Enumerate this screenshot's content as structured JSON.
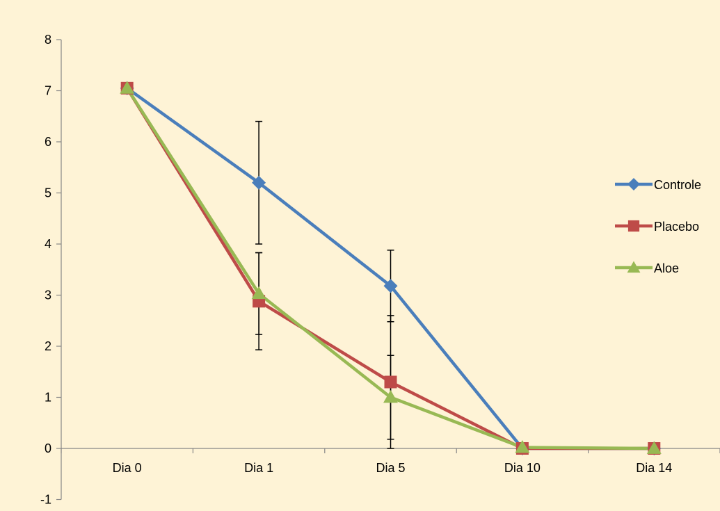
{
  "chart_data": {
    "type": "line",
    "title": "",
    "xlabel": "",
    "ylabel": "",
    "categories": [
      "Dia 0",
      "Dia 1",
      "Dia 5",
      "Dia 10",
      "Dia 14"
    ],
    "ylim": [
      -1,
      8
    ],
    "yticks": [
      -1,
      0,
      1,
      2,
      3,
      4,
      5,
      6,
      7,
      8
    ],
    "grid": false,
    "legend": "right",
    "series": [
      {
        "name": "Controle",
        "color": "#4A7EBB",
        "marker": "diamond",
        "values": [
          7.05,
          5.2,
          3.18,
          0,
          0
        ],
        "error": [
          null,
          1.2,
          0.7,
          null,
          null
        ]
      },
      {
        "name": "Placebo",
        "color": "#BE4B48",
        "marker": "square",
        "values": [
          7.05,
          2.88,
          1.3,
          0,
          0
        ],
        "error": [
          null,
          0.95,
          1.3,
          null,
          null
        ]
      },
      {
        "name": "Aloe",
        "color": "#98B954",
        "marker": "triangle",
        "values": [
          7.05,
          3.03,
          1.0,
          0.02,
          0
        ],
        "error": [
          null,
          0.8,
          0.82,
          null,
          null
        ]
      }
    ]
  }
}
